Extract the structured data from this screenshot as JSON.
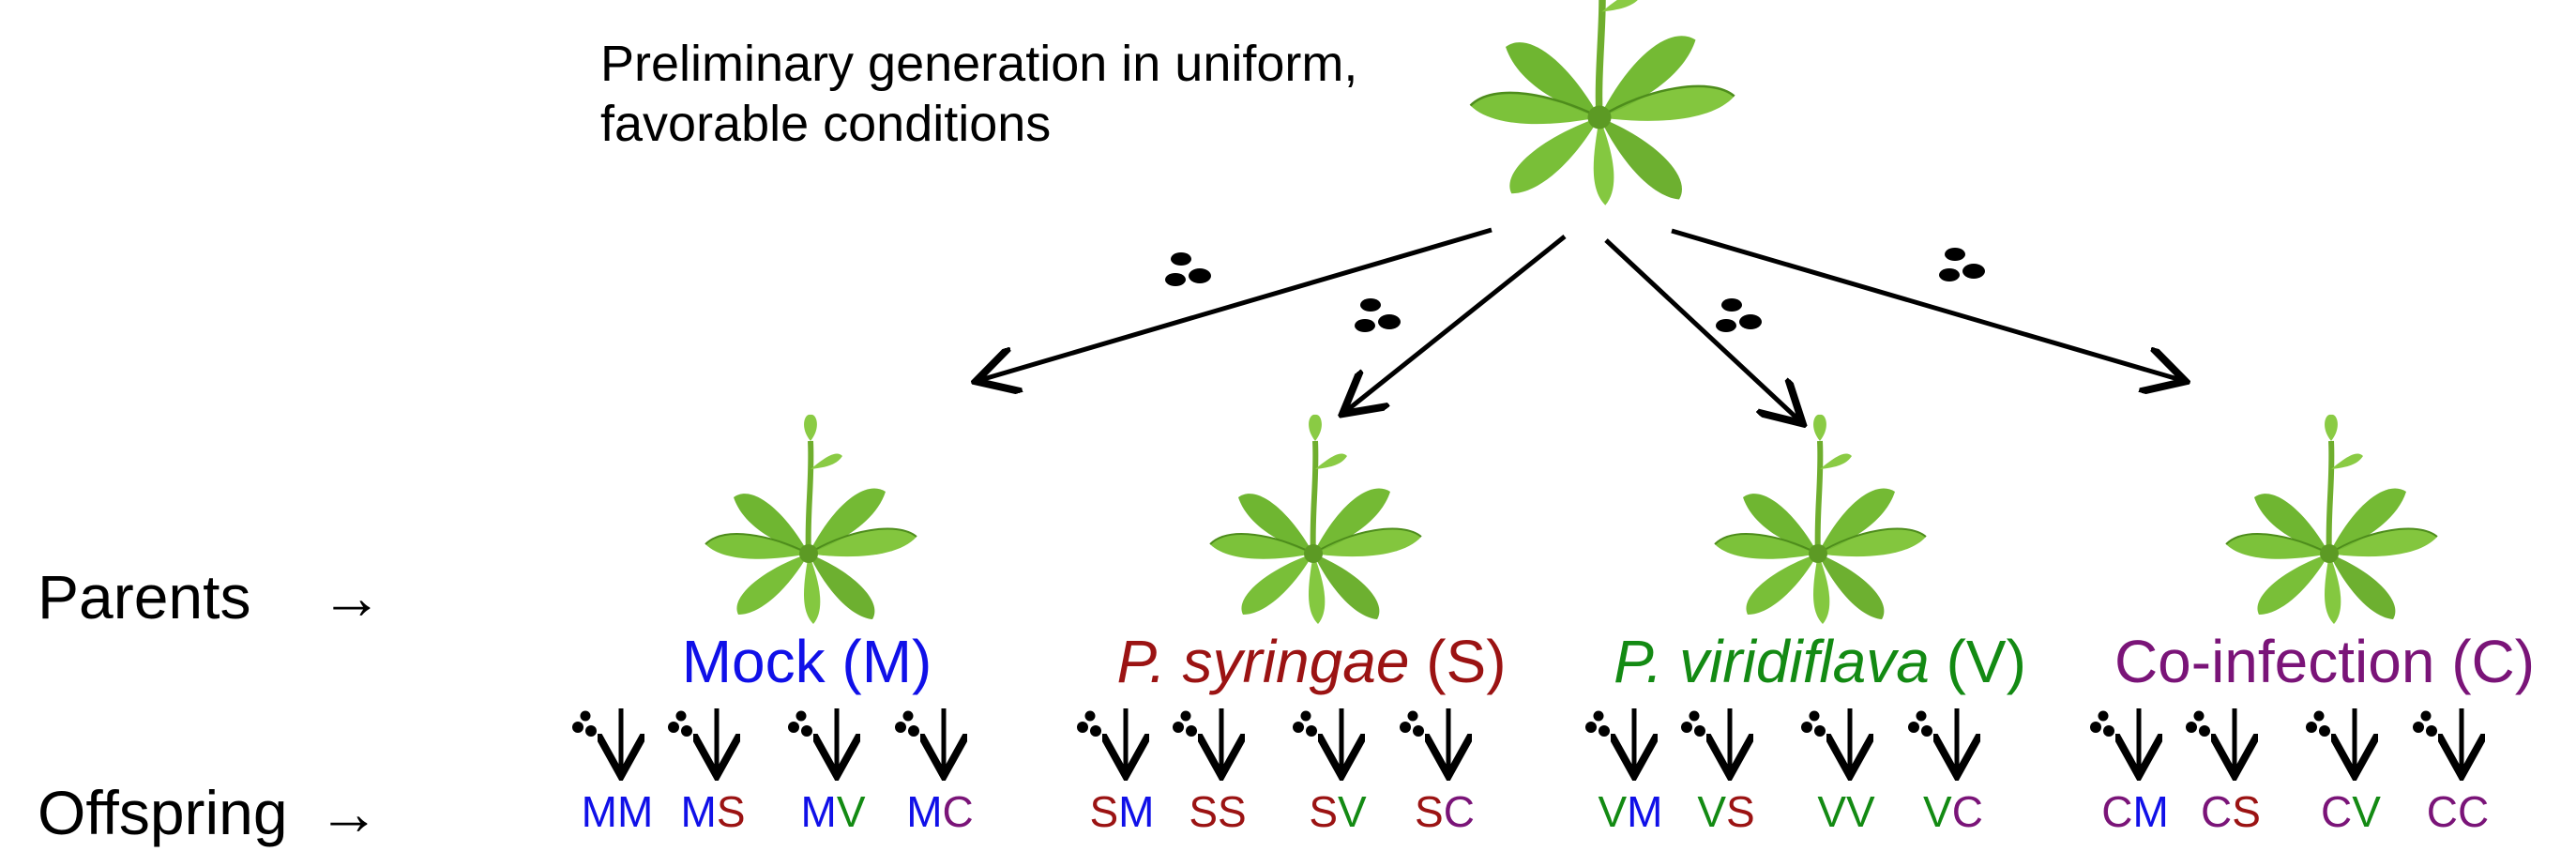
{
  "intro": {
    "line1": "Preliminary generation in uniform,",
    "line2": "favorable conditions"
  },
  "rows": {
    "parents": "Parents",
    "offspring": "Offspring",
    "arrow": "→"
  },
  "colors": {
    "M": "#1010e8",
    "S": "#9b1313",
    "V": "#138a13",
    "C": "#7a1478",
    "plant": "#7cc23a",
    "plant_dark": "#4e8d1c"
  },
  "groups": [
    {
      "key": "M",
      "name_italic": "",
      "name_plain": "Mock (M)",
      "offspring": [
        {
          "first": "M",
          "second": "M"
        },
        {
          "first": "M",
          "second": "S"
        },
        {
          "first": "M",
          "second": "V"
        },
        {
          "first": "M",
          "second": "C"
        }
      ]
    },
    {
      "key": "S",
      "name_italic": "P. syringae",
      "name_plain": " (S)",
      "offspring": [
        {
          "first": "S",
          "second": "M"
        },
        {
          "first": "S",
          "second": "S"
        },
        {
          "first": "S",
          "second": "V"
        },
        {
          "first": "S",
          "second": "C"
        }
      ]
    },
    {
      "key": "V",
      "name_italic": "P. viridiflava",
      "name_plain": " (V)",
      "offspring": [
        {
          "first": "V",
          "second": "M"
        },
        {
          "first": "V",
          "second": "S"
        },
        {
          "first": "V",
          "second": "V"
        },
        {
          "first": "V",
          "second": "C"
        }
      ]
    },
    {
      "key": "C",
      "name_italic": "",
      "name_plain": "Co-infection (C)",
      "offspring": [
        {
          "first": "C",
          "second": "M"
        },
        {
          "first": "C",
          "second": "S"
        },
        {
          "first": "C",
          "second": "V"
        },
        {
          "first": "C",
          "second": "C"
        }
      ]
    }
  ]
}
